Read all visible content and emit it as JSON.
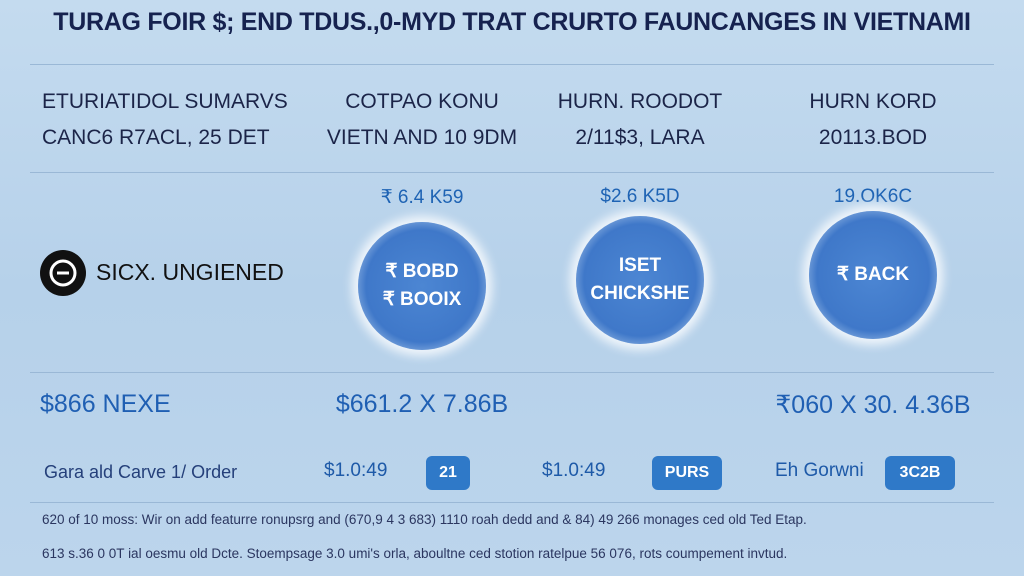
{
  "header": {
    "title": "TURAG FOIR $; END TDUS.,0-MYD TRAT CRURTO FAUNCANGES IN VIETNAMI"
  },
  "summary": {
    "heading": [
      "ETURIATIDOL SUMARVS",
      "CANC6 R7ACL, 25 DET"
    ],
    "logo_text": "SICX. UNGIENED",
    "value": "$866 NEXE",
    "footer": "Gara ald Carve 1/ Order"
  },
  "columns": [
    {
      "heading": [
        "COTPAO KONU",
        "VIETN AND 10 9DM"
      ],
      "price": "₹ 6.4 K59",
      "circle": [
        "₹ BOBD",
        "₹ BOOIX"
      ],
      "value": "$661.2 X 7.86B",
      "footer": "$1.0:49",
      "badge": "21"
    },
    {
      "heading": [
        "HURN. ROODOT",
        "2/11$3, LARA"
      ],
      "price": "$2.6 K5D",
      "circle": [
        "ISET",
        "CHICKSHE"
      ],
      "footer": "$1.0:49",
      "badge": "PURS"
    },
    {
      "heading": [
        "HURN KORD",
        "20113.BOD"
      ],
      "price": "19.OK6C",
      "circle": [
        "₹ BACK"
      ],
      "value": "₹060 X 30. 4.36B",
      "footer": "Eh Gorwni",
      "badge": "3C2B"
    }
  ],
  "footnote": [
    "620 of 10 moss: Wir on add featurre ronupsrg and (670,9 4 3 683) 1110 roah dedd and & 84) 49 266 monages ced old Ted Etap.",
    "613 s.36 0 0T ial oesmu old Dcte. Stoempsage 3.0 umi's orla, aboultne ced stotion ratelpue 56 076, rots coumpement invtud."
  ]
}
